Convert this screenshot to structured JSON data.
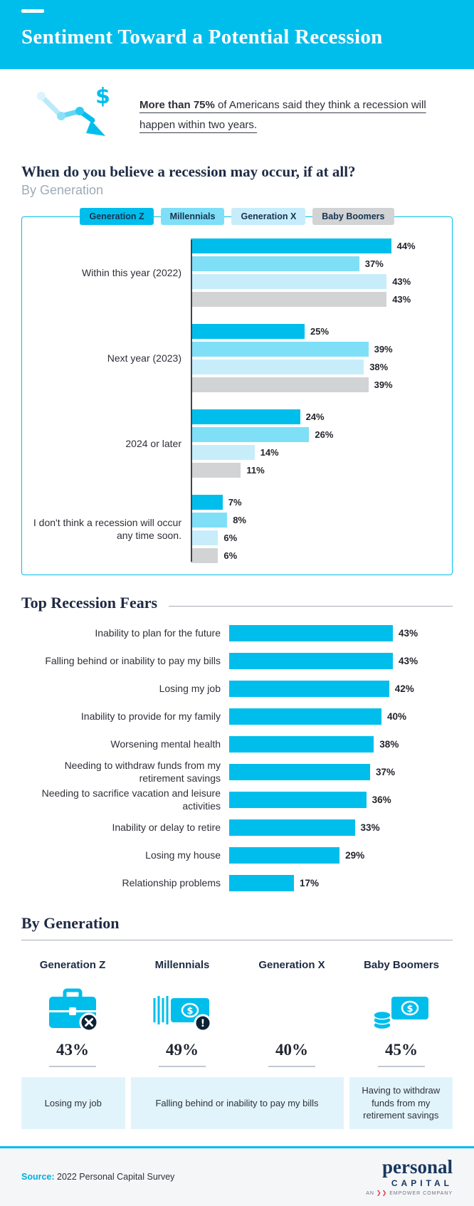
{
  "header": {
    "title": "Sentiment Toward a Potential Recession"
  },
  "intro": {
    "highlight": "More than 75%",
    "rest": " of Americans said they think a recession will happen within two years."
  },
  "when_section": {
    "title": "When do you believe a recession may occur, if at all?",
    "subtitle": "By Generation"
  },
  "chart_data": [
    {
      "type": "bar",
      "orientation": "horizontal",
      "title": "When do you believe a recession may occur, if at all? (By Generation)",
      "categories": [
        "Within this year (2022)",
        "Next year (2023)",
        "2024 or later",
        "I don't think a recession will occur any time soon."
      ],
      "series": [
        {
          "name": "Generation Z",
          "color": "#00BEEC",
          "values": [
            44,
            25,
            24,
            7
          ]
        },
        {
          "name": "Millennials",
          "color": "#7FDFF7",
          "values": [
            37,
            39,
            26,
            8
          ]
        },
        {
          "name": "Generation X",
          "color": "#C7EDFB",
          "values": [
            43,
            38,
            14,
            6
          ]
        },
        {
          "name": "Baby Boomers",
          "color": "#D2D3D5",
          "values": [
            43,
            39,
            11,
            6
          ]
        }
      ],
      "value_suffix": "%",
      "xlim": [
        0,
        50
      ],
      "legend_position": "top",
      "grid": false
    },
    {
      "type": "bar",
      "orientation": "horizontal",
      "title": "Top Recession Fears",
      "categories": [
        "Inability to plan for the future",
        "Falling behind or inability to pay my bills",
        "Losing my job",
        "Inability to provide for my family",
        "Worsening mental health",
        "Needing to withdraw funds from my retirement savings",
        "Needing to sacrifice vacation and leisure activities",
        "Inability or delay to retire",
        "Losing my house",
        "Relationship problems"
      ],
      "values": [
        43,
        43,
        42,
        40,
        38,
        37,
        36,
        33,
        29,
        17
      ],
      "color": "#00BEEC",
      "value_suffix": "%",
      "xlim": [
        0,
        50
      ],
      "grid": false
    }
  ],
  "fears_section": {
    "title": "Top Recession Fears"
  },
  "by_generation": {
    "title": "By Generation",
    "columns": [
      {
        "name": "Generation Z",
        "value": "43%",
        "icon": "briefcase-x-icon"
      },
      {
        "name": "Millennials",
        "value": "49%",
        "icon": "dollar-bill-alert-icon"
      },
      {
        "name": "Generation X",
        "value": "40%",
        "icon": ""
      },
      {
        "name": "Baby Boomers",
        "value": "45%",
        "icon": "dollar-bill-coins-icon"
      }
    ],
    "callouts": [
      {
        "text": "Losing my job",
        "span": 1
      },
      {
        "text": "Falling behind or inability to pay my bills",
        "span": 2
      },
      {
        "text": "Having to withdraw funds from my retirement savings",
        "span": 1
      }
    ]
  },
  "footer": {
    "source_label": "Source:",
    "source_text": " 2022 Personal Capital Survey",
    "logo_top": "personal",
    "logo_bottom": "CAPITAL",
    "logo_an": "AN",
    "logo_company": "EMPOWER COMPANY"
  },
  "colors": {
    "accent": "#00BEEC",
    "dark_navy": "#1E2B45",
    "callout_bg": "#E2F4FB",
    "boomer_gray": "#D2D3D5",
    "badge": "#0E2236"
  }
}
